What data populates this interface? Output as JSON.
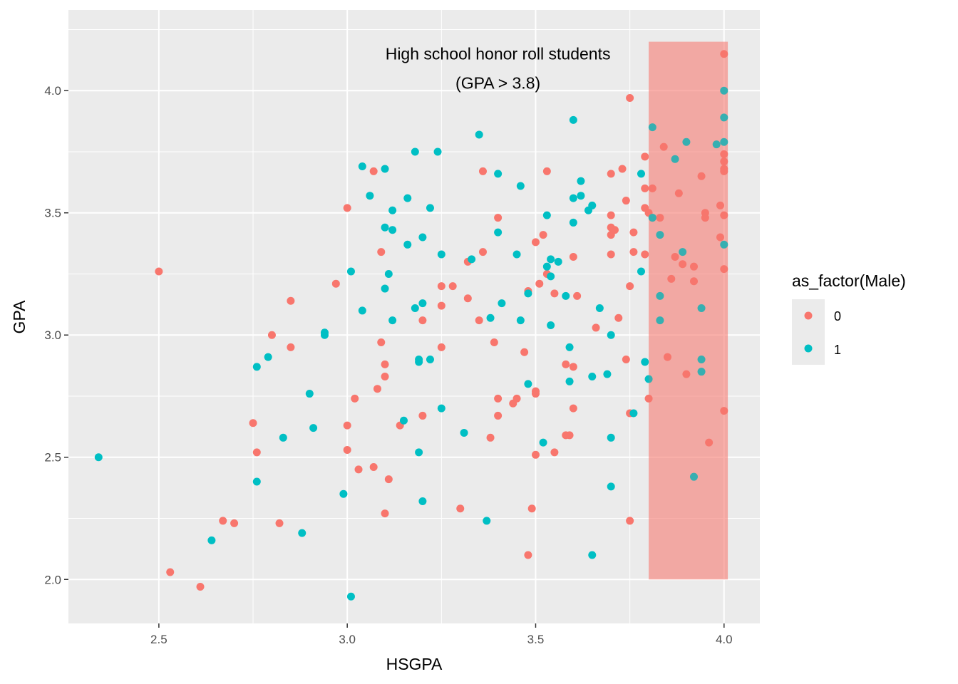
{
  "chart_data": {
    "type": "scatter",
    "xlabel": "HSGPA",
    "ylabel": "GPA",
    "xlim": [
      2.26,
      4.095
    ],
    "ylim": [
      1.82,
      4.33
    ],
    "x_ticks": [
      2.5,
      3.0,
      3.5,
      4.0
    ],
    "x_tick_labels": [
      "2.5",
      "3.0",
      "3.5",
      "4.0"
    ],
    "y_ticks": [
      2.0,
      2.5,
      3.0,
      3.5,
      4.0
    ],
    "y_tick_labels": [
      "2.0",
      "2.5",
      "3.0",
      "3.5",
      "4.0"
    ],
    "grid": true,
    "annotation": {
      "lines": [
        "High school honor roll students",
        "(GPA > 3.8)"
      ],
      "x": 3.4,
      "y": 4.15
    },
    "highlight_rect": {
      "xmin": 3.8,
      "xmax": 4.01,
      "ymin": 2.0,
      "ymax": 4.2,
      "color": "#f8766d",
      "opacity": 0.4
    },
    "legend": {
      "title": "as_factor(Male)",
      "position": "right",
      "entries": [
        "0",
        "1"
      ]
    },
    "series": [
      {
        "name": "0",
        "color": "#f8766d",
        "points": [
          [
            2.5,
            3.26
          ],
          [
            2.53,
            2.03
          ],
          [
            2.61,
            1.97
          ],
          [
            2.67,
            2.24
          ],
          [
            2.7,
            2.23
          ],
          [
            2.75,
            2.64
          ],
          [
            2.76,
            2.52
          ],
          [
            2.8,
            3.0
          ],
          [
            2.82,
            2.23
          ],
          [
            2.85,
            3.14
          ],
          [
            2.85,
            2.95
          ],
          [
            2.97,
            3.21
          ],
          [
            3.0,
            3.52
          ],
          [
            3.0,
            2.63
          ],
          [
            3.0,
            2.53
          ],
          [
            3.02,
            2.74
          ],
          [
            3.03,
            2.45
          ],
          [
            3.07,
            3.67
          ],
          [
            3.07,
            2.46
          ],
          [
            3.08,
            2.78
          ],
          [
            3.09,
            3.34
          ],
          [
            3.09,
            2.97
          ],
          [
            3.1,
            2.88
          ],
          [
            3.1,
            2.83
          ],
          [
            3.1,
            2.27
          ],
          [
            3.11,
            2.41
          ],
          [
            3.14,
            2.63
          ],
          [
            3.2,
            3.06
          ],
          [
            3.2,
            2.67
          ],
          [
            3.25,
            3.2
          ],
          [
            3.25,
            3.12
          ],
          [
            3.25,
            2.95
          ],
          [
            3.28,
            3.2
          ],
          [
            3.3,
            2.29
          ],
          [
            3.32,
            3.3
          ],
          [
            3.32,
            3.15
          ],
          [
            3.35,
            3.06
          ],
          [
            3.36,
            3.67
          ],
          [
            3.36,
            3.34
          ],
          [
            3.38,
            2.58
          ],
          [
            3.39,
            2.97
          ],
          [
            3.4,
            3.48
          ],
          [
            3.4,
            2.74
          ],
          [
            3.4,
            2.67
          ],
          [
            3.44,
            2.72
          ],
          [
            3.45,
            2.74
          ],
          [
            3.47,
            2.93
          ],
          [
            3.48,
            3.18
          ],
          [
            3.48,
            2.1
          ],
          [
            3.49,
            2.29
          ],
          [
            3.5,
            3.38
          ],
          [
            3.5,
            2.77
          ],
          [
            3.5,
            2.76
          ],
          [
            3.5,
            2.51
          ],
          [
            3.51,
            3.21
          ],
          [
            3.52,
            3.41
          ],
          [
            3.53,
            3.67
          ],
          [
            3.53,
            3.25
          ],
          [
            3.55,
            3.17
          ],
          [
            3.55,
            2.52
          ],
          [
            3.58,
            2.88
          ],
          [
            3.58,
            2.59
          ],
          [
            3.59,
            2.59
          ],
          [
            3.6,
            3.32
          ],
          [
            3.6,
            2.87
          ],
          [
            3.6,
            2.7
          ],
          [
            3.61,
            3.16
          ],
          [
            3.66,
            3.03
          ],
          [
            3.7,
            3.66
          ],
          [
            3.7,
            3.49
          ],
          [
            3.7,
            3.44
          ],
          [
            3.7,
            3.41
          ],
          [
            3.7,
            3.33
          ],
          [
            3.71,
            3.43
          ],
          [
            3.72,
            3.07
          ],
          [
            3.73,
            3.68
          ],
          [
            3.74,
            3.55
          ],
          [
            3.74,
            2.9
          ],
          [
            3.75,
            3.97
          ],
          [
            3.75,
            3.2
          ],
          [
            3.75,
            2.68
          ],
          [
            3.75,
            2.24
          ],
          [
            3.76,
            3.42
          ],
          [
            3.76,
            3.34
          ],
          [
            3.79,
            3.73
          ],
          [
            3.79,
            3.6
          ],
          [
            3.79,
            3.52
          ],
          [
            3.79,
            3.33
          ],
          [
            3.8,
            3.5
          ],
          [
            3.8,
            2.74
          ],
          [
            3.81,
            3.6
          ],
          [
            3.81,
            3.48
          ],
          [
            3.83,
            3.48
          ],
          [
            3.84,
            3.77
          ],
          [
            3.85,
            2.91
          ],
          [
            3.86,
            3.23
          ],
          [
            3.87,
            3.32
          ],
          [
            3.88,
            3.58
          ],
          [
            3.89,
            3.29
          ],
          [
            3.9,
            2.84
          ],
          [
            3.92,
            3.28
          ],
          [
            3.92,
            3.22
          ],
          [
            3.94,
            3.65
          ],
          [
            3.95,
            3.5
          ],
          [
            3.95,
            3.48
          ],
          [
            3.96,
            2.56
          ],
          [
            3.99,
            3.53
          ],
          [
            3.99,
            3.4
          ],
          [
            4.0,
            4.15
          ],
          [
            4.0,
            3.74
          ],
          [
            4.0,
            3.71
          ],
          [
            4.0,
            3.68
          ],
          [
            4.0,
            3.67
          ],
          [
            4.0,
            3.49
          ],
          [
            4.0,
            3.27
          ],
          [
            4.0,
            2.69
          ]
        ]
      },
      {
        "name": "1",
        "color": "#00bfc4",
        "points": [
          [
            2.34,
            2.5
          ],
          [
            2.64,
            2.16
          ],
          [
            2.76,
            2.87
          ],
          [
            2.76,
            2.4
          ],
          [
            2.79,
            2.91
          ],
          [
            2.83,
            2.58
          ],
          [
            2.88,
            2.19
          ],
          [
            2.9,
            2.76
          ],
          [
            2.91,
            2.62
          ],
          [
            2.94,
            3.01
          ],
          [
            2.94,
            3.0
          ],
          [
            2.99,
            2.35
          ],
          [
            3.01,
            3.26
          ],
          [
            3.01,
            1.93
          ],
          [
            3.04,
            3.69
          ],
          [
            3.04,
            3.1
          ],
          [
            3.06,
            3.57
          ],
          [
            3.1,
            3.68
          ],
          [
            3.1,
            3.44
          ],
          [
            3.1,
            3.19
          ],
          [
            3.11,
            3.25
          ],
          [
            3.12,
            3.51
          ],
          [
            3.12,
            3.43
          ],
          [
            3.12,
            3.06
          ],
          [
            3.15,
            2.65
          ],
          [
            3.16,
            3.56
          ],
          [
            3.16,
            3.37
          ],
          [
            3.18,
            3.75
          ],
          [
            3.18,
            3.11
          ],
          [
            3.19,
            2.9
          ],
          [
            3.19,
            2.89
          ],
          [
            3.19,
            2.52
          ],
          [
            3.2,
            3.4
          ],
          [
            3.2,
            3.13
          ],
          [
            3.2,
            2.32
          ],
          [
            3.22,
            3.52
          ],
          [
            3.22,
            2.9
          ],
          [
            3.24,
            3.75
          ],
          [
            3.25,
            3.33
          ],
          [
            3.25,
            2.7
          ],
          [
            3.31,
            2.6
          ],
          [
            3.33,
            3.31
          ],
          [
            3.35,
            3.82
          ],
          [
            3.37,
            2.24
          ],
          [
            3.38,
            3.07
          ],
          [
            3.4,
            3.66
          ],
          [
            3.4,
            3.42
          ],
          [
            3.41,
            3.13
          ],
          [
            3.45,
            3.33
          ],
          [
            3.46,
            3.61
          ],
          [
            3.46,
            3.06
          ],
          [
            3.48,
            3.17
          ],
          [
            3.48,
            2.8
          ],
          [
            3.52,
            2.56
          ],
          [
            3.53,
            3.49
          ],
          [
            3.53,
            3.28
          ],
          [
            3.54,
            3.31
          ],
          [
            3.54,
            3.24
          ],
          [
            3.54,
            3.04
          ],
          [
            3.56,
            3.3
          ],
          [
            3.58,
            3.16
          ],
          [
            3.59,
            2.95
          ],
          [
            3.59,
            2.81
          ],
          [
            3.6,
            3.88
          ],
          [
            3.6,
            3.56
          ],
          [
            3.6,
            3.46
          ],
          [
            3.62,
            3.63
          ],
          [
            3.62,
            3.57
          ],
          [
            3.64,
            3.51
          ],
          [
            3.65,
            3.53
          ],
          [
            3.65,
            2.83
          ],
          [
            3.65,
            2.1
          ],
          [
            3.67,
            3.11
          ],
          [
            3.69,
            2.84
          ],
          [
            3.7,
            3.0
          ],
          [
            3.7,
            2.58
          ],
          [
            3.7,
            2.38
          ],
          [
            3.76,
            2.68
          ],
          [
            3.78,
            3.66
          ],
          [
            3.78,
            3.26
          ],
          [
            3.79,
            2.89
          ],
          [
            3.8,
            2.82
          ],
          [
            3.81,
            3.85
          ],
          [
            3.81,
            3.48
          ],
          [
            3.83,
            3.41
          ],
          [
            3.83,
            3.16
          ],
          [
            3.83,
            3.06
          ],
          [
            3.87,
            3.72
          ],
          [
            3.89,
            3.34
          ],
          [
            3.9,
            3.79
          ],
          [
            3.92,
            2.42
          ],
          [
            3.94,
            3.11
          ],
          [
            3.94,
            2.9
          ],
          [
            3.94,
            2.85
          ],
          [
            3.98,
            3.78
          ],
          [
            4.0,
            4.0
          ],
          [
            4.0,
            3.89
          ],
          [
            4.0,
            3.79
          ],
          [
            4.0,
            3.37
          ]
        ]
      }
    ]
  }
}
